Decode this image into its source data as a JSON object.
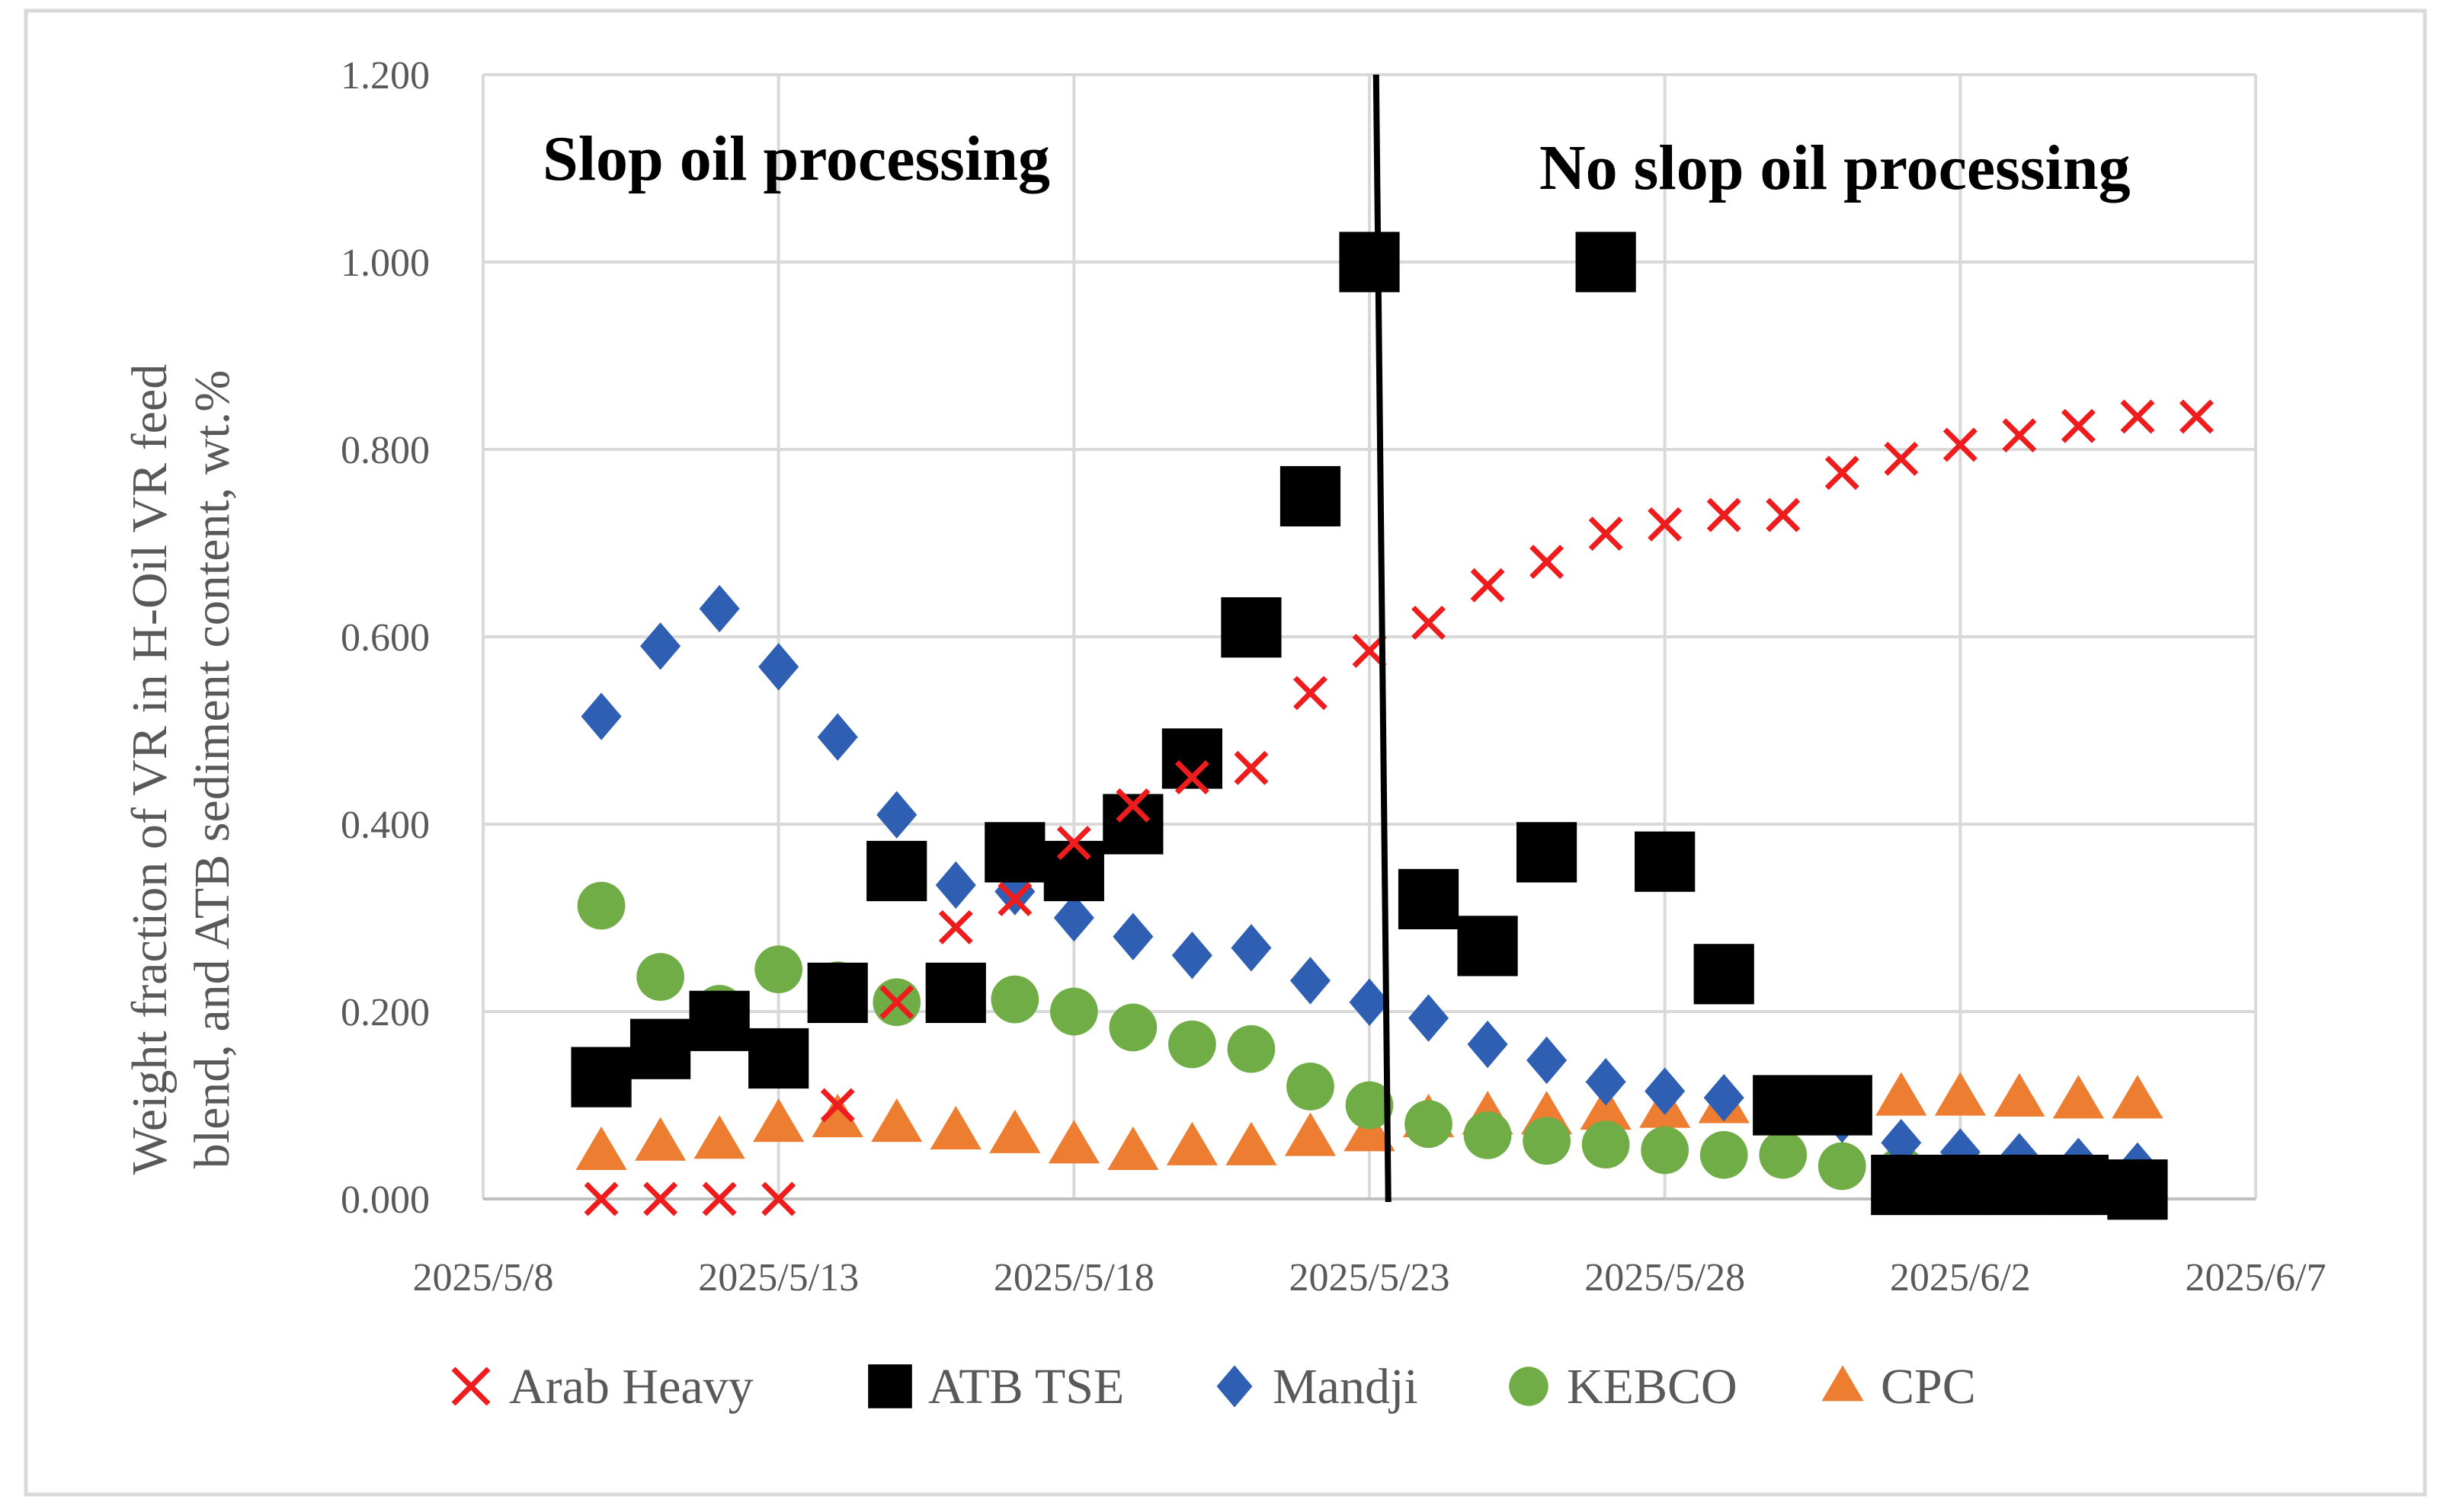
{
  "chart_data": {
    "type": "scatter",
    "title": "",
    "xlabel": "",
    "ylabel": "Weight fraction of VR in H-Oil VR feed blend, and ATB sediment content, wt.%",
    "ylabel_lines": [
      "Weight fraction of VR in H-Oil VR feed",
      "blend, and ATB sediment content, wt.%"
    ],
    "x_ticks": [
      "2025/5/8",
      "2025/5/13",
      "2025/5/18",
      "2025/5/23",
      "2025/5/28",
      "2025/6/2",
      "2025/6/7"
    ],
    "xlim_days": [
      0,
      30
    ],
    "x_origin": "2025/5/8",
    "y_ticks": [
      "0.000",
      "0.200",
      "0.400",
      "0.600",
      "0.800",
      "1.000",
      "1.200"
    ],
    "ylim": [
      0,
      1.2
    ],
    "grid": true,
    "legend_position": "bottom",
    "divider_day": 15.5,
    "annotations": [
      {
        "text": "Slop oil processing",
        "side": "left"
      },
      {
        "text": "No slop oil processing",
        "side": "right"
      }
    ],
    "series": [
      {
        "name": "Arab Heavy",
        "marker": "cross",
        "color": "#ee1c1c",
        "x": [
          2,
          3,
          4,
          5,
          6,
          7,
          8,
          9,
          10,
          11,
          12,
          13,
          14,
          15,
          16,
          17,
          18,
          19,
          20,
          21,
          22,
          23,
          24,
          25,
          26,
          27,
          28,
          29
        ],
        "y": [
          0,
          0,
          0,
          0,
          0.1,
          0.21,
          0.29,
          0.32,
          0.38,
          0.42,
          0.45,
          0.46,
          0.54,
          0.585,
          0.615,
          0.655,
          0.68,
          0.71,
          0.72,
          0.73,
          0.73,
          0.775,
          0.79,
          0.805,
          0.815,
          0.825,
          0.835,
          0.835
        ]
      },
      {
        "name": "ATB TSE",
        "marker": "square",
        "color": "#000000",
        "x": [
          2,
          3,
          4,
          5,
          6,
          7,
          8,
          9,
          10,
          11,
          12,
          13,
          14,
          15,
          16,
          17,
          18,
          19,
          20,
          21,
          22,
          23,
          24,
          25,
          26,
          27,
          28
        ],
        "y": [
          0.13,
          0.16,
          0.19,
          0.15,
          0.22,
          0.35,
          0.22,
          0.37,
          0.35,
          0.4,
          0.47,
          0.61,
          0.75,
          1.0,
          0.32,
          0.27,
          0.37,
          1.0,
          0.36,
          0.24,
          0.1,
          0.1,
          0.015,
          0.015,
          0.015,
          0.015,
          0.01
        ]
      },
      {
        "name": "Mandji",
        "marker": "diamond",
        "color": "#2e5fb2",
        "x": [
          2,
          3,
          4,
          5,
          6,
          7,
          8,
          9,
          10,
          11,
          12,
          13,
          14,
          15,
          16,
          17,
          18,
          19,
          20,
          21,
          22,
          23,
          24,
          25,
          26,
          27,
          28
        ],
        "y": [
          0.515,
          0.59,
          0.63,
          0.568,
          0.493,
          0.41,
          0.335,
          0.328,
          0.3,
          0.28,
          0.26,
          0.268,
          0.233,
          0.21,
          0.193,
          0.165,
          0.148,
          0.125,
          0.115,
          0.108,
          0.1,
          0.085,
          0.06,
          0.05,
          0.045,
          0.04,
          0.035
        ]
      },
      {
        "name": "KEBCO",
        "marker": "circle",
        "color": "#70ad47",
        "x": [
          2,
          3,
          4,
          5,
          6,
          7,
          8,
          9,
          10,
          11,
          12,
          13,
          14,
          15,
          16,
          17,
          18,
          19,
          20,
          21,
          22,
          23,
          24,
          25,
          26,
          27,
          28
        ],
        "y": [
          0.313,
          0.237,
          0.203,
          0.245,
          0.228,
          0.21,
          0.223,
          0.213,
          0.2,
          0.183,
          0.165,
          0.16,
          0.12,
          0.1,
          0.08,
          0.068,
          0.062,
          0.058,
          0.052,
          0.047,
          0.047,
          0.035,
          0.03,
          0.025,
          0.022,
          0.018,
          0.015
        ]
      },
      {
        "name": "CPC",
        "marker": "triangle",
        "color": "#ed7d31",
        "x": [
          2,
          3,
          4,
          5,
          6,
          7,
          8,
          9,
          10,
          11,
          12,
          13,
          14,
          15,
          16,
          17,
          18,
          19,
          20,
          21,
          22,
          23,
          24,
          25,
          26,
          27,
          28
        ],
        "y": [
          0.05,
          0.06,
          0.062,
          0.08,
          0.085,
          0.08,
          0.072,
          0.068,
          0.057,
          0.05,
          0.055,
          0.055,
          0.065,
          0.07,
          0.085,
          0.088,
          0.088,
          0.093,
          0.095,
          0.1,
          0.1,
          0.103,
          0.108,
          0.108,
          0.107,
          0.105,
          0.105
        ]
      }
    ]
  }
}
